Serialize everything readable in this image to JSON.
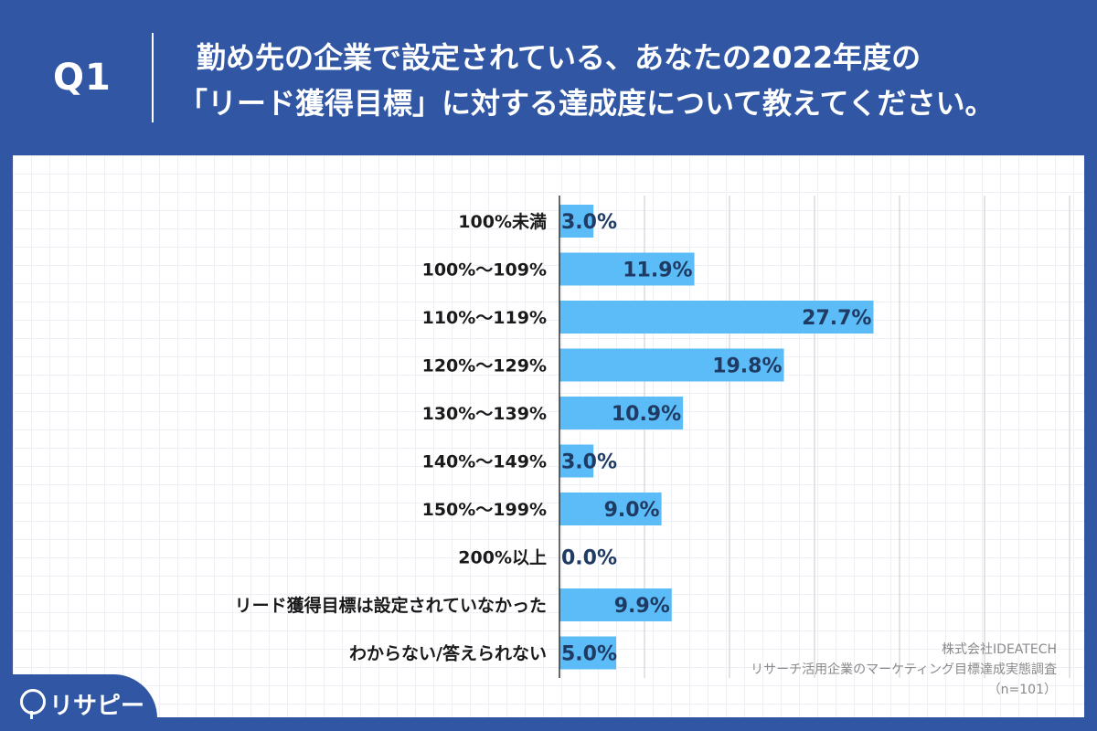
{
  "header": {
    "q_label": "Q1",
    "question_line1": "勤め先の企業で設定されている、あなたの2022年度の",
    "question_line2": "「リード獲得目標」に対する達成度について教えてください。"
  },
  "chart_data": {
    "type": "bar",
    "orientation": "horizontal",
    "categories": [
      "100%未満",
      "100%〜109%",
      "110%〜119%",
      "120%〜129%",
      "130%〜139%",
      "140%〜149%",
      "150%〜199%",
      "200%以上",
      "リード獲得目標は設定されていなかった",
      "わからない/答えられない"
    ],
    "values": [
      3.0,
      11.9,
      27.7,
      19.8,
      10.9,
      3.0,
      9.0,
      0.0,
      9.9,
      5.0
    ],
    "value_labels": [
      "3.0%",
      "11.9%",
      "27.7%",
      "19.8%",
      "10.9%",
      "3.0%",
      "9.0%",
      "0.0%",
      "9.9%",
      "5.0%"
    ],
    "xlim": [
      0,
      45
    ],
    "grid_step": 7.5,
    "grid": true,
    "bar_color": "#5bbcf7"
  },
  "footer": {
    "source_line1": "株式会社IDEATECH",
    "source_line2": "リサーチ活用企業のマーケティング目標達成実態調査",
    "source_line3": "（n=101）"
  },
  "logo": {
    "text": "リサピー"
  }
}
